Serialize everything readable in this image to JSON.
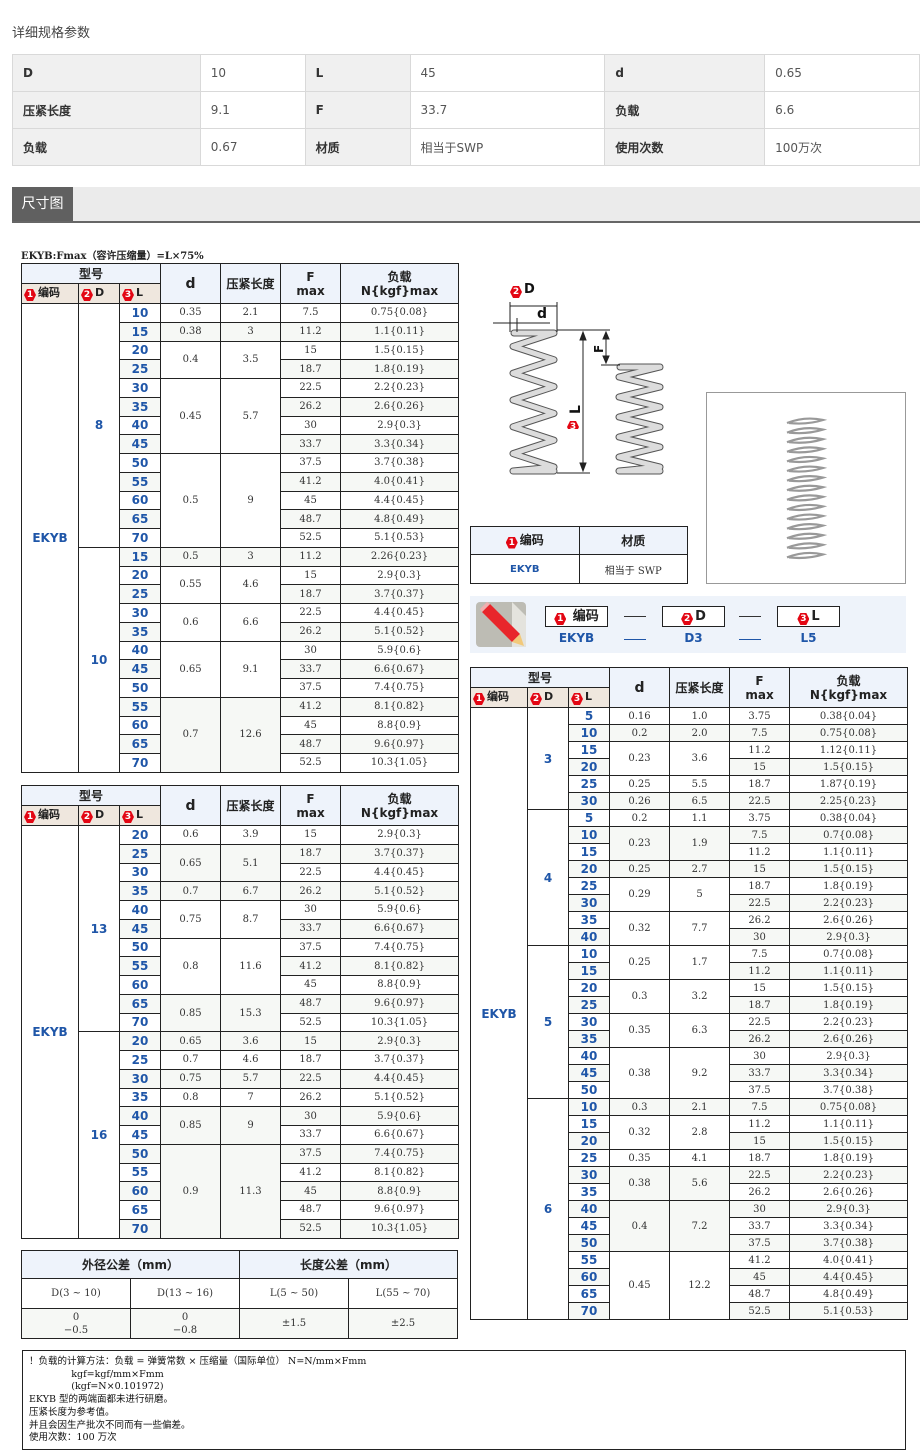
{
  "page": {
    "title": "详细规格参数",
    "section_tab": "尺寸图",
    "caption": "EKYB:Fmax（容许压缩量）=L×75%"
  },
  "params": [
    [
      {
        "label": "D",
        "value": "10"
      },
      {
        "label": "L",
        "value": "45"
      },
      {
        "label": "d",
        "value": "0.65"
      }
    ],
    [
      {
        "label": "压紧长度",
        "value": "9.1"
      },
      {
        "label": "F",
        "value": "33.7"
      },
      {
        "label": "负载",
        "value": "6.6"
      }
    ],
    [
      {
        "label": "负载",
        "value": "0.67"
      },
      {
        "label": "材质",
        "value": "相当于SWP"
      },
      {
        "label": "使用次数",
        "value": "100万次"
      }
    ]
  ],
  "headers": {
    "model": "型号",
    "code": "编码",
    "D": "D",
    "L": "L",
    "d": "d",
    "solid": "压紧长度",
    "F1": "F",
    "F2": "max",
    "load1": "负载",
    "load2": "N{kgf}max",
    "n1": "1",
    "n2": "2",
    "n3": "3"
  },
  "colors": {
    "accent_blue": "#1f56a8",
    "badge_red": "#e30613",
    "header_bg": "#eef3fb"
  },
  "tables": [
    {
      "code": "EKYB",
      "groups": [
        {
          "D": "8",
          "subs": [
            {
              "d": "0.35",
              "solid": "2.1",
              "rows": [
                [
                  "10",
                  "7.5",
                  "0.75{0.08}"
                ]
              ]
            },
            {
              "d": "0.38",
              "solid": "3",
              "rows": [
                [
                  "15",
                  "11.2",
                  "1.1{0.11}"
                ]
              ]
            },
            {
              "d": "0.4",
              "solid": "3.5",
              "rows": [
                [
                  "20",
                  "15",
                  "1.5{0.15}"
                ],
                [
                  "25",
                  "18.7",
                  "1.8{0.19}"
                ]
              ]
            },
            {
              "d": "0.45",
              "solid": "5.7",
              "rows": [
                [
                  "30",
                  "22.5",
                  "2.2{0.23}"
                ],
                [
                  "35",
                  "26.2",
                  "2.6{0.26}"
                ],
                [
                  "40",
                  "30",
                  "2.9{0.3}"
                ],
                [
                  "45",
                  "33.7",
                  "3.3{0.34}"
                ]
              ]
            },
            {
              "d": "0.5",
              "solid": "9",
              "rows": [
                [
                  "50",
                  "37.5",
                  "3.7{0.38}"
                ],
                [
                  "55",
                  "41.2",
                  "4.0{0.41}"
                ],
                [
                  "60",
                  "45",
                  "4.4{0.45}"
                ],
                [
                  "65",
                  "48.7",
                  "4.8{0.49}"
                ],
                [
                  "70",
                  "52.5",
                  "5.1{0.53}"
                ]
              ]
            }
          ]
        },
        {
          "D": "10",
          "subs": [
            {
              "d": "0.5",
              "solid": "3",
              "rows": [
                [
                  "15",
                  "11.2",
                  "2.26{0.23}"
                ]
              ]
            },
            {
              "d": "0.55",
              "solid": "4.6",
              "rows": [
                [
                  "20",
                  "15",
                  "2.9{0.3}"
                ],
                [
                  "25",
                  "18.7",
                  "3.7{0.37}"
                ]
              ]
            },
            {
              "d": "0.6",
              "solid": "6.6",
              "rows": [
                [
                  "30",
                  "22.5",
                  "4.4{0.45}"
                ],
                [
                  "35",
                  "26.2",
                  "5.1{0.52}"
                ]
              ]
            },
            {
              "d": "0.65",
              "solid": "9.1",
              "rows": [
                [
                  "40",
                  "30",
                  "5.9{0.6}"
                ],
                [
                  "45",
                  "33.7",
                  "6.6{0.67}"
                ],
                [
                  "50",
                  "37.5",
                  "7.4{0.75}"
                ]
              ]
            },
            {
              "d": "0.7",
              "solid": "12.6",
              "rows": [
                [
                  "55",
                  "41.2",
                  "8.1{0.82}"
                ],
                [
                  "60",
                  "45",
                  "8.8{0.9}"
                ],
                [
                  "65",
                  "48.7",
                  "9.6{0.97}"
                ],
                [
                  "70",
                  "52.5",
                  "10.3{1.05}"
                ]
              ]
            }
          ]
        }
      ]
    },
    {
      "code": "EKYB",
      "groups": [
        {
          "D": "13",
          "subs": [
            {
              "d": "0.6",
              "solid": "3.9",
              "rows": [
                [
                  "20",
                  "15",
                  "2.9{0.3}"
                ]
              ]
            },
            {
              "d": "0.65",
              "solid": "5.1",
              "rows": [
                [
                  "25",
                  "18.7",
                  "3.7{0.37}"
                ],
                [
                  "30",
                  "22.5",
                  "4.4{0.45}"
                ]
              ]
            },
            {
              "d": "0.7",
              "solid": "6.7",
              "rows": [
                [
                  "35",
                  "26.2",
                  "5.1{0.52}"
                ]
              ]
            },
            {
              "d": "0.75",
              "solid": "8.7",
              "rows": [
                [
                  "40",
                  "30",
                  "5.9{0.6}"
                ],
                [
                  "45",
                  "33.7",
                  "6.6{0.67}"
                ]
              ]
            },
            {
              "d": "0.8",
              "solid": "11.6",
              "rows": [
                [
                  "50",
                  "37.5",
                  "7.4{0.75}"
                ],
                [
                  "55",
                  "41.2",
                  "8.1{0.82}"
                ],
                [
                  "60",
                  "45",
                  "8.8{0.9}"
                ]
              ]
            },
            {
              "d": "0.85",
              "solid": "15.3",
              "rows": [
                [
                  "65",
                  "48.7",
                  "9.6{0.97}"
                ],
                [
                  "70",
                  "52.5",
                  "10.3{1.05}"
                ]
              ]
            }
          ]
        },
        {
          "D": "16",
          "subs": [
            {
              "d": "0.65",
              "solid": "3.6",
              "rows": [
                [
                  "20",
                  "15",
                  "2.9{0.3}"
                ]
              ]
            },
            {
              "d": "0.7",
              "solid": "4.6",
              "rows": [
                [
                  "25",
                  "18.7",
                  "3.7{0.37}"
                ]
              ]
            },
            {
              "d": "0.75",
              "solid": "5.7",
              "rows": [
                [
                  "30",
                  "22.5",
                  "4.4{0.45}"
                ]
              ]
            },
            {
              "d": "0.8",
              "solid": "7",
              "rows": [
                [
                  "35",
                  "26.2",
                  "5.1{0.52}"
                ]
              ]
            },
            {
              "d": "0.85",
              "solid": "9",
              "rows": [
                [
                  "40",
                  "30",
                  "5.9{0.6}"
                ],
                [
                  "45",
                  "33.7",
                  "6.6{0.67}"
                ]
              ]
            },
            {
              "d": "0.9",
              "solid": "11.3",
              "rows": [
                [
                  "50",
                  "37.5",
                  "7.4{0.75}"
                ],
                [
                  "55",
                  "41.2",
                  "8.1{0.82}"
                ],
                [
                  "60",
                  "45",
                  "8.8{0.9}"
                ],
                [
                  "65",
                  "48.7",
                  "9.6{0.97}"
                ],
                [
                  "70",
                  "52.5",
                  "10.3{1.05}"
                ]
              ]
            }
          ]
        }
      ]
    },
    {
      "code": "EKYB",
      "groups": [
        {
          "D": "3",
          "subs": [
            {
              "d": "0.16",
              "solid": "1.0",
              "rows": [
                [
                  "5",
                  "3.75",
                  "0.38{0.04}"
                ]
              ]
            },
            {
              "d": "0.2",
              "solid": "2.0",
              "rows": [
                [
                  "10",
                  "7.5",
                  "0.75{0.08}"
                ]
              ]
            },
            {
              "d": "0.23",
              "solid": "3.6",
              "rows": [
                [
                  "15",
                  "11.2",
                  "1.12{0.11}"
                ],
                [
                  "20",
                  "15",
                  "1.5{0.15}"
                ]
              ]
            },
            {
              "d": "0.25",
              "solid": "5.5",
              "rows": [
                [
                  "25",
                  "18.7",
                  "1.87{0.19}"
                ]
              ]
            },
            {
              "d": "0.26",
              "solid": "6.5",
              "rows": [
                [
                  "30",
                  "22.5",
                  "2.25{0.23}"
                ]
              ]
            }
          ]
        },
        {
          "D": "4",
          "subs": [
            {
              "d": "0.2",
              "solid": "1.1",
              "rows": [
                [
                  "5",
                  "3.75",
                  "0.38{0.04}"
                ]
              ]
            },
            {
              "d": "0.23",
              "solid": "1.9",
              "rows": [
                [
                  "10",
                  "7.5",
                  "0.7{0.08}"
                ],
                [
                  "15",
                  "11.2",
                  "1.1{0.11}"
                ]
              ]
            },
            {
              "d": "0.25",
              "solid": "2.7",
              "rows": [
                [
                  "20",
                  "15",
                  "1.5{0.15}"
                ]
              ]
            },
            {
              "d": "0.29",
              "solid": "5",
              "rows": [
                [
                  "25",
                  "18.7",
                  "1.8{0.19}"
                ],
                [
                  "30",
                  "22.5",
                  "2.2{0.23}"
                ]
              ]
            },
            {
              "d": "0.32",
              "solid": "7.7",
              "rows": [
                [
                  "35",
                  "26.2",
                  "2.6{0.26}"
                ],
                [
                  "40",
                  "30",
                  "2.9{0.3}"
                ]
              ]
            }
          ]
        },
        {
          "D": "5",
          "subs": [
            {
              "d": "0.25",
              "solid": "1.7",
              "rows": [
                [
                  "10",
                  "7.5",
                  "0.7{0.08}"
                ],
                [
                  "15",
                  "11.2",
                  "1.1{0.11}"
                ]
              ]
            },
            {
              "d": "0.3",
              "solid": "3.2",
              "rows": [
                [
                  "20",
                  "15",
                  "1.5{0.15}"
                ],
                [
                  "25",
                  "18.7",
                  "1.8{0.19}"
                ]
              ]
            },
            {
              "d": "0.35",
              "solid": "6.3",
              "rows": [
                [
                  "30",
                  "22.5",
                  "2.2{0.23}"
                ],
                [
                  "35",
                  "26.2",
                  "2.6{0.26}"
                ]
              ]
            },
            {
              "d": "0.38",
              "solid": "9.2",
              "rows": [
                [
                  "40",
                  "30",
                  "2.9{0.3}"
                ],
                [
                  "45",
                  "33.7",
                  "3.3{0.34}"
                ],
                [
                  "50",
                  "37.5",
                  "3.7{0.38}"
                ]
              ]
            }
          ]
        },
        {
          "D": "6",
          "subs": [
            {
              "d": "0.3",
              "solid": "2.1",
              "rows": [
                [
                  "10",
                  "7.5",
                  "0.75{0.08}"
                ]
              ]
            },
            {
              "d": "0.32",
              "solid": "2.8",
              "rows": [
                [
                  "15",
                  "11.2",
                  "1.1{0.11}"
                ],
                [
                  "20",
                  "15",
                  "1.5{0.15}"
                ]
              ]
            },
            {
              "d": "0.35",
              "solid": "4.1",
              "rows": [
                [
                  "25",
                  "18.7",
                  "1.8{0.19}"
                ]
              ]
            },
            {
              "d": "0.38",
              "solid": "5.6",
              "rows": [
                [
                  "30",
                  "22.5",
                  "2.2{0.23}"
                ],
                [
                  "35",
                  "26.2",
                  "2.6{0.26}"
                ]
              ]
            },
            {
              "d": "0.4",
              "solid": "7.2",
              "rows": [
                [
                  "40",
                  "30",
                  "2.9{0.3}"
                ],
                [
                  "45",
                  "33.7",
                  "3.3{0.34}"
                ],
                [
                  "50",
                  "37.5",
                  "3.7{0.38}"
                ]
              ]
            },
            {
              "d": "0.45",
              "solid": "12.2",
              "rows": [
                [
                  "55",
                  "41.2",
                  "4.0{0.41}"
                ],
                [
                  "60",
                  "45",
                  "4.4{0.45}"
                ],
                [
                  "65",
                  "48.7",
                  "4.8{0.49}"
                ],
                [
                  "70",
                  "52.5",
                  "5.1{0.53}"
                ]
              ]
            }
          ]
        }
      ]
    }
  ],
  "tolerance": {
    "od_header": "外径公差（mm）",
    "len_header": "长度公差（mm）",
    "cols": [
      "D(3 ~ 10)",
      "D(13 ~ 16)",
      "L(5 ~ 50)",
      "L(55 ~ 70)"
    ],
    "od1_upper": "0",
    "od1_lower": "−0.5",
    "od2_upper": "0",
    "od2_lower": "−0.8",
    "len1": "±1.5",
    "len2": "±2.5"
  },
  "notes": [
    "！负载的计算方法：负载 = 弹簧常数 × 压缩量（国际单位） N=N/mm×Fmm",
    "              kgf=kgf/mm×Fmm",
    "              (kgf=N×0.101972)",
    "EKYB 型的两端面都未进行研磨。",
    "压紧长度为参考值。",
    "并且会因生产批次不同而有一些偏差。",
    "使用次数：100 万次"
  ],
  "diagram": {
    "D": "D",
    "d": "d",
    "F": "F",
    "L": "L"
  },
  "material": {
    "code_header": "编码",
    "material_header": "材质",
    "code": "EKYB",
    "material": "相当于 SWP"
  },
  "order_example": {
    "code_label": "编码",
    "D_label": "D",
    "L_label": "L",
    "code": "EKYB",
    "D": "D3",
    "L": "L5"
  }
}
